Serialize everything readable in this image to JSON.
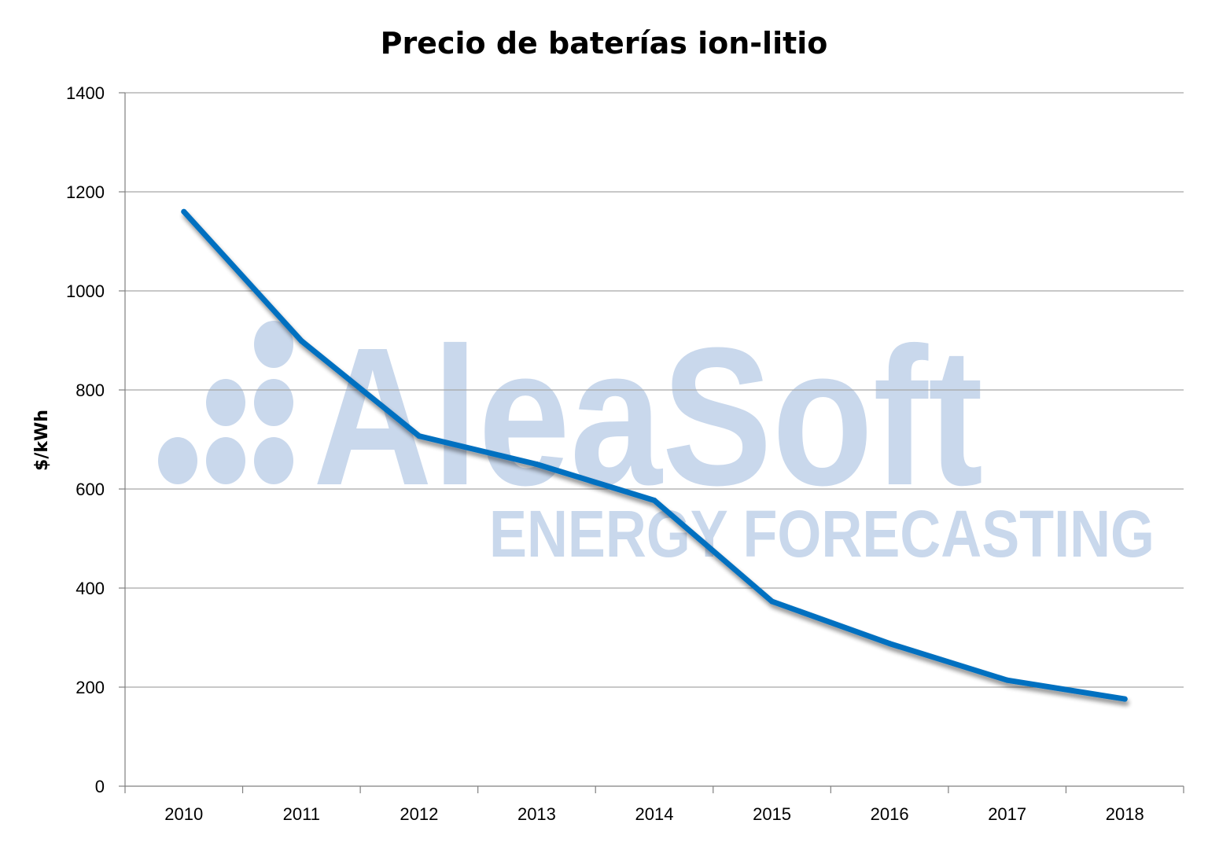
{
  "chart_data": {
    "type": "line",
    "title": "Precio de baterías ion-litio",
    "xlabel": "",
    "ylabel": "$/kWh",
    "categories": [
      "2010",
      "2011",
      "2012",
      "2013",
      "2014",
      "2015",
      "2016",
      "2017",
      "2018"
    ],
    "series": [
      {
        "values": [
          1160,
          899,
          707,
          650,
          577,
          373,
          288,
          214,
          176
        ]
      }
    ],
    "ylim": [
      0,
      1400
    ],
    "yticks": [
      0,
      200,
      400,
      600,
      800,
      1000,
      1200,
      1400
    ],
    "grid": true,
    "legend": "none",
    "colors": {
      "line": "#0070c0",
      "grid": "#a6a6a6",
      "axis": "#808080",
      "watermark": "#c9d8ec"
    }
  },
  "watermark": {
    "brand": "AleaSoft",
    "tagline": "ENERGY FORECASTING"
  }
}
